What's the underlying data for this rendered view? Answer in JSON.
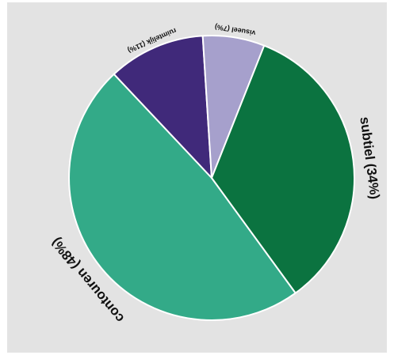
{
  "chart_data": {
    "type": "pie",
    "slices": [
      {
        "label": "contouren (48%)",
        "value": 48,
        "color": "#33aa88"
      },
      {
        "label": "ruimtelijk (11%)",
        "value": 11,
        "color": "#40297a"
      },
      {
        "label": "visueel (7%)",
        "value": 7,
        "color": "#a6a0cc"
      },
      {
        "label": "subtiel (34%)",
        "value": 34,
        "color": "#0b7340"
      }
    ],
    "start_angle_deg": 144,
    "direction": "clockwise",
    "slice_border_color": "#ffffff",
    "background_color": "#e3e3e3"
  }
}
